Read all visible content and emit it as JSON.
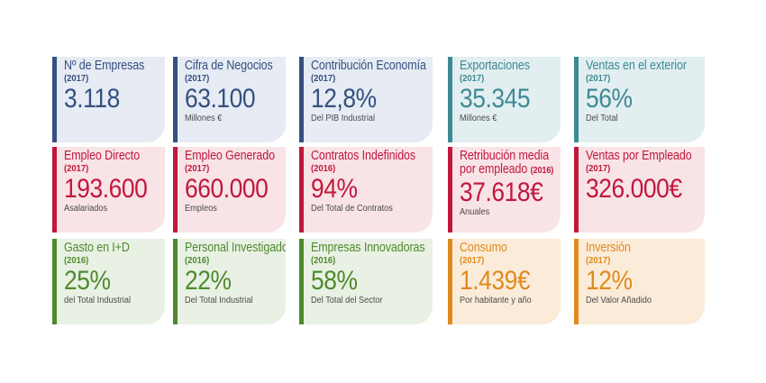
{
  "colors": {
    "blue": "#35507e",
    "teal": "#3e8a94",
    "red": "#c0183c",
    "green": "#4f8a2e",
    "orange": "#e08a1e"
  },
  "row1": {
    "empresas": {
      "title": "Nº de Empresas",
      "year": "(2017)",
      "value": "3.118",
      "sub": ""
    },
    "cifra": {
      "title": "Cifra de Negocios",
      "year": "(2017)",
      "value": "63.100",
      "sub": "Millones €"
    },
    "contribucion": {
      "title": "Contribución Economía",
      "year": "(2017)",
      "value": "12,8%",
      "sub": "Del PIB Industrial"
    },
    "exportaciones": {
      "title": "Exportaciones",
      "year": "(2017)",
      "value": "35.345",
      "sub": "Millones €"
    },
    "ventas_exterior": {
      "title": "Ventas en el exterior",
      "year": "(2017)",
      "value": "56%",
      "sub": "Del Total"
    }
  },
  "row2": {
    "empleo_directo": {
      "title": "Empleo Directo",
      "year": "(2017)",
      "value": "193.600",
      "sub": "Asalariados"
    },
    "empleo_generado": {
      "title": "Empleo Generado",
      "year": "(2017)",
      "value": "660.000",
      "sub": "Empleos"
    },
    "contratos": {
      "title": "Contratos Indefinidos",
      "year": "(2016)",
      "value": "94%",
      "sub": "Del Total de Contratos"
    },
    "retribucion": {
      "title": "Retribución media",
      "title2": "por empleado",
      "year": "(2016)",
      "value": "37.618€",
      "sub": "Anuales"
    },
    "ventas_empleado": {
      "title": "Ventas por Empleado",
      "year": "(2017)",
      "value": "326.000€",
      "sub": ""
    }
  },
  "row3": {
    "gasto_id": {
      "title": "Gasto en I+D",
      "year": "(2016)",
      "value": "25%",
      "sub": "del Total Industrial"
    },
    "personal": {
      "title": "Personal Investigador",
      "year": "(2016)",
      "value": "22%",
      "sub": "Del Total Industrial"
    },
    "innovadoras": {
      "title": "Empresas Innovadoras",
      "year": "(2016)",
      "value": "58%",
      "sub": "Del Total del Sector"
    },
    "consumo": {
      "title": "Consumo",
      "year": "(2017)",
      "value": "1.439€",
      "sub": "Por habitante y año"
    },
    "inversion": {
      "title": "Inversión",
      "year": "(2017)",
      "value": "12%",
      "sub": "Del Valor Añadido"
    }
  }
}
